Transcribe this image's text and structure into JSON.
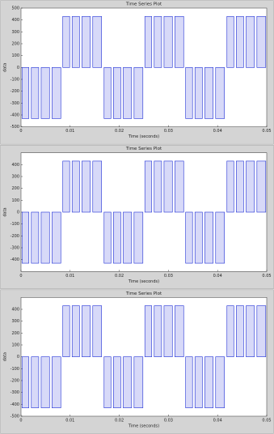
{
  "chart_data": [
    {
      "type": "bar",
      "title": "Time Series Plot",
      "xlabel": "Time (seconds)",
      "ylabel": "data",
      "color": "#1f2fd6",
      "x_start": [
        0.0002,
        0.0021,
        0.0041,
        0.0063,
        0.0085,
        0.0104,
        0.0124,
        0.0146,
        0.0169,
        0.0188,
        0.0208,
        0.023,
        0.0252,
        0.0271,
        0.0291,
        0.0313,
        0.0335,
        0.0354,
        0.0374,
        0.0396,
        0.0419,
        0.0438,
        0.0458,
        0.048
      ],
      "x_end": [
        0.0016,
        0.0036,
        0.0058,
        0.0081,
        0.0099,
        0.0119,
        0.0141,
        0.0164,
        0.0183,
        0.0203,
        0.0225,
        0.0248,
        0.0266,
        0.0286,
        0.0308,
        0.0331,
        0.0349,
        0.0369,
        0.0391,
        0.0414,
        0.0433,
        0.0453,
        0.0475,
        0.0498
      ],
      "values": [
        -430,
        -430,
        -430,
        -430,
        430,
        430,
        430,
        430,
        -430,
        -430,
        -430,
        -430,
        430,
        430,
        430,
        430,
        -430,
        -430,
        -430,
        -430,
        430,
        430,
        430,
        430
      ],
      "xlim": [
        0,
        0.05
      ],
      "xticks": [
        0,
        0.01,
        0.02,
        0.03,
        0.04,
        0.05
      ],
      "ylim": [
        -500,
        500
      ],
      "yticks": [
        -500,
        -400,
        -300,
        -200,
        -100,
        0,
        100,
        200,
        300,
        400,
        500
      ]
    },
    {
      "type": "bar",
      "title": "Time Series Plot",
      "xlabel": "Time (seconds)",
      "ylabel": "data",
      "color": "#1f2fd6",
      "x_start": [
        0.0002,
        0.0021,
        0.0041,
        0.0063,
        0.0085,
        0.0104,
        0.0124,
        0.0146,
        0.0169,
        0.0188,
        0.0208,
        0.023,
        0.0252,
        0.0271,
        0.0291,
        0.0313,
        0.0335,
        0.0354,
        0.0374,
        0.0396,
        0.0419,
        0.0438,
        0.0458,
        0.048
      ],
      "x_end": [
        0.0016,
        0.0036,
        0.0058,
        0.0081,
        0.0099,
        0.0119,
        0.0141,
        0.0164,
        0.0183,
        0.0203,
        0.0225,
        0.0248,
        0.0266,
        0.0286,
        0.0308,
        0.0331,
        0.0349,
        0.0369,
        0.0391,
        0.0414,
        0.0433,
        0.0453,
        0.0475,
        0.0498
      ],
      "values": [
        -430,
        -430,
        -430,
        -430,
        430,
        430,
        430,
        430,
        -430,
        -430,
        -430,
        -430,
        430,
        430,
        430,
        430,
        -430,
        -430,
        -430,
        -430,
        430,
        430,
        430,
        430
      ],
      "xlim": [
        0,
        0.05
      ],
      "xticks": [
        0,
        0.01,
        0.02,
        0.03,
        0.04,
        0.05
      ],
      "ylim": [
        -500,
        500
      ],
      "yticks": [
        -400,
        -300,
        -200,
        -100,
        0,
        100,
        200,
        300,
        400
      ]
    },
    {
      "type": "bar",
      "title": "Time Series Plot",
      "xlabel": "Time (seconds)",
      "ylabel": "data",
      "color": "#1f2fd6",
      "x_start": [
        0.0002,
        0.0021,
        0.0041,
        0.0063,
        0.0085,
        0.0104,
        0.0124,
        0.0146,
        0.0169,
        0.0188,
        0.0208,
        0.023,
        0.0252,
        0.0271,
        0.0291,
        0.0313,
        0.0335,
        0.0354,
        0.0374,
        0.0396,
        0.0419,
        0.0438,
        0.0458,
        0.048
      ],
      "x_end": [
        0.0016,
        0.0036,
        0.0058,
        0.0081,
        0.0099,
        0.0119,
        0.0141,
        0.0164,
        0.0183,
        0.0203,
        0.0225,
        0.0248,
        0.0266,
        0.0286,
        0.0308,
        0.0331,
        0.0349,
        0.0369,
        0.0391,
        0.0414,
        0.0433,
        0.0453,
        0.0475,
        0.0498
      ],
      "values": [
        -430,
        -430,
        -430,
        -430,
        430,
        430,
        430,
        430,
        -430,
        -430,
        -430,
        -430,
        430,
        430,
        430,
        430,
        -430,
        -430,
        -430,
        -430,
        430,
        430,
        430,
        430
      ],
      "xlim": [
        0,
        0.05
      ],
      "xticks": [
        0,
        0.01,
        0.02,
        0.03,
        0.04,
        0.05
      ],
      "ylim": [
        -500,
        500
      ],
      "yticks": [
        -500,
        -400,
        -300,
        -200,
        -100,
        0,
        100,
        200,
        300,
        400
      ]
    }
  ]
}
